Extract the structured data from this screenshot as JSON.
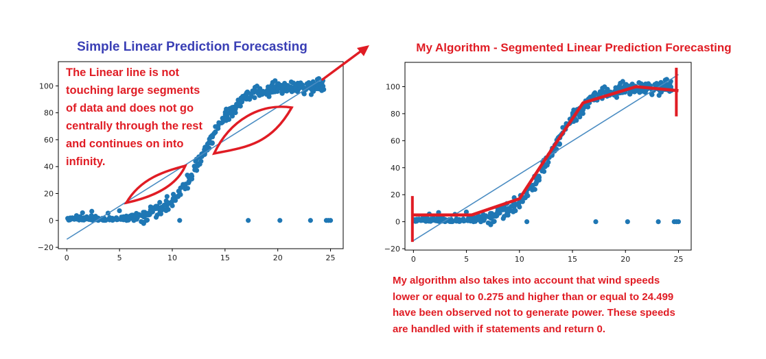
{
  "colors": {
    "scatter": "#1f77b4",
    "fit_line": "#4a8cc2",
    "annotation": "#e01c24",
    "title_left": "#3a3fb5",
    "title_right": "#e01c24"
  },
  "left_panel": {
    "title": "Simple Linear Prediction Forecasting",
    "note_lines": [
      "The Linear line is not",
      "touching large segments",
      "of data and does not go",
      "centrally through the rest",
      "and continues on into",
      "infinity."
    ]
  },
  "right_panel": {
    "title": "My Algorithm - Segmented Linear Prediction Forecasting",
    "note_lines": [
      "My algorithm also takes into account that wind speeds",
      "lower or equal to 0.275 and higher than or equal to 24.499",
      "have been observed not to generate power. These speeds",
      "are handled with if statements and return 0."
    ]
  },
  "chart_data": [
    {
      "type": "scatter",
      "title": "",
      "xlabel": "",
      "ylabel": "",
      "xlim": [
        -0.8,
        26.2
      ],
      "ylim": [
        -21,
        118
      ],
      "x_ticks": [
        "0",
        "5",
        "10",
        "15",
        "20",
        "25"
      ],
      "y_ticks": [
        "−20",
        "0",
        "20",
        "40",
        "60",
        "80",
        "100"
      ],
      "grid": false,
      "series": [
        {
          "kind": "points",
          "outliers_x": [
            10.7,
            17.2,
            20.2,
            23.1,
            24.6,
            24.8,
            25.0
          ]
        },
        {
          "kind": "fit_line",
          "x": [
            0,
            25
          ],
          "y": [
            -14,
            109
          ]
        }
      ]
    },
    {
      "type": "scatter",
      "title": "",
      "xlabel": "",
      "ylabel": "",
      "xlim": [
        -0.8,
        26.2
      ],
      "ylim": [
        -21,
        118
      ],
      "x_ticks": [
        "0",
        "5",
        "10",
        "15",
        "20",
        "25"
      ],
      "y_ticks": [
        "−20",
        "0",
        "20",
        "40",
        "60",
        "80",
        "100"
      ],
      "grid": false,
      "series": [
        {
          "kind": "points",
          "outliers_x": [
            10.7,
            17.2,
            20.2,
            23.1,
            24.6,
            24.8,
            25.0
          ]
        },
        {
          "kind": "fit_line",
          "x": [
            0,
            25
          ],
          "y": [
            -14,
            109
          ]
        },
        {
          "kind": "segments",
          "x": [
            0,
            5.5,
            10,
            13,
            16,
            21,
            25
          ],
          "y": [
            5,
            5,
            17,
            53,
            88,
            100,
            97
          ]
        }
      ]
    }
  ]
}
